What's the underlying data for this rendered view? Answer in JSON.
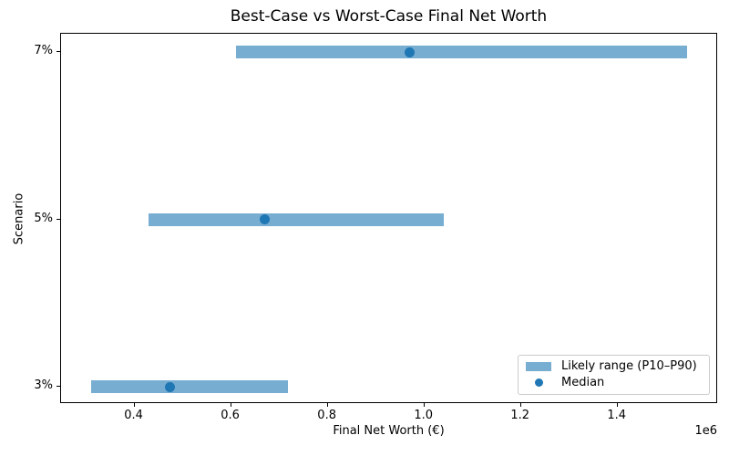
{
  "chart_data": {
    "type": "bar",
    "orientation": "horizontal",
    "title": "Best-Case vs Worst-Case Final Net Worth",
    "xlabel": "Final Net Worth (€)",
    "ylabel": "Scenario",
    "x_scale_note": "1e6",
    "categories": [
      "7%",
      "5%",
      "3%"
    ],
    "series": [
      {
        "name": "P10 (range start)",
        "values": [
          610000,
          430000,
          310000
        ]
      },
      {
        "name": "Median",
        "values": [
          970000,
          670000,
          473000
        ]
      },
      {
        "name": "P90 (range end)",
        "values": [
          1544000,
          1040000,
          717000
        ]
      }
    ],
    "xlim": [
      248000,
      1608000
    ],
    "xticks": [
      400000,
      600000,
      800000,
      1000000,
      1200000,
      1400000
    ],
    "xtick_labels": [
      "0.4",
      "0.6",
      "0.8",
      "1.0",
      "1.2",
      "1.4"
    ],
    "ytick_labels": [
      "7%",
      "5%",
      "3%"
    ],
    "grid": false,
    "legend_position": "lower right",
    "legend_entries": [
      "Likely range (P10–P90)",
      "Median"
    ],
    "colors": {
      "range_bar": "#78add2",
      "median_dot": "#1f77b4",
      "spine": "#000000",
      "legend_border": "#cccccc"
    }
  }
}
